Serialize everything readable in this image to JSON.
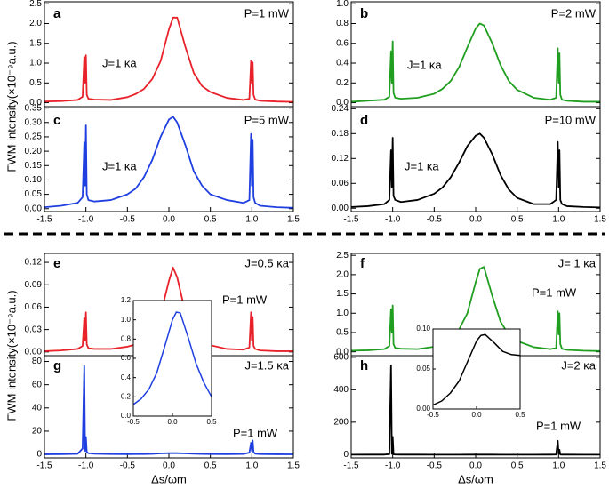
{
  "chart_data": [
    {
      "type": "line",
      "title": "a",
      "annotations": [
        "P=1 mW",
        "J=1 κa"
      ],
      "ylabel": "FWM intensity(×10⁻⁹a.u.)",
      "color": "#e8212a",
      "xlim": [
        -1.5,
        1.5
      ],
      "ylim": [
        -0.1,
        2.55
      ],
      "yticks": [
        {
          "value": 0,
          "label": "0.0"
        },
        0.5,
        {
          "value": 1,
          "label": "1.0"
        },
        1.5,
        {
          "value": 2,
          "label": "2.0"
        },
        2.5
      ],
      "x": [
        -1.5,
        -1.3,
        -1.1,
        -1.04,
        -1.02,
        -1.01,
        -1.0,
        -0.99,
        -0.97,
        -0.9,
        -0.7,
        -0.5,
        -0.4,
        -0.3,
        -0.2,
        -0.1,
        0,
        0.05,
        0.1,
        0.2,
        0.3,
        0.4,
        0.5,
        0.7,
        0.9,
        0.97,
        0.99,
        1.0,
        1.01,
        1.02,
        1.04,
        1.1,
        1.3,
        1.5
      ],
      "values": [
        0.03,
        0.04,
        0.07,
        0.15,
        1.15,
        0.5,
        1.2,
        0.2,
        0.1,
        0.08,
        0.07,
        0.14,
        0.22,
        0.35,
        0.6,
        1.05,
        1.85,
        2.15,
        2.15,
        1.4,
        0.75,
        0.42,
        0.27,
        0.12,
        0.07,
        0.1,
        1.05,
        0.5,
        1.02,
        0.2,
        0.08,
        0.05,
        0.03,
        0.02
      ]
    },
    {
      "type": "line",
      "title": "b",
      "annotations": [
        "P=2 mW",
        "J=1 κa"
      ],
      "color": "#1f9e1f",
      "xlim": [
        -1.5,
        1.5
      ],
      "ylim": [
        -0.04,
        1.02
      ],
      "yticks": [
        {
          "value": 0,
          "label": "0.0"
        },
        0.2,
        0.4,
        0.6,
        0.8,
        {
          "value": 1,
          "label": "1.0"
        }
      ],
      "x": [
        -1.5,
        -1.3,
        -1.1,
        -1.04,
        -1.02,
        -1.01,
        -1.0,
        -0.99,
        -0.97,
        -0.9,
        -0.7,
        -0.5,
        -0.4,
        -0.3,
        -0.2,
        -0.1,
        0,
        0.05,
        0.1,
        0.2,
        0.3,
        0.4,
        0.5,
        0.7,
        0.9,
        0.97,
        0.99,
        1.0,
        1.01,
        1.02,
        1.04,
        1.1,
        1.3,
        1.5
      ],
      "values": [
        0.01,
        0.02,
        0.03,
        0.06,
        0.52,
        0.2,
        0.62,
        0.1,
        0.05,
        0.04,
        0.05,
        0.09,
        0.14,
        0.22,
        0.36,
        0.56,
        0.75,
        0.8,
        0.78,
        0.6,
        0.38,
        0.22,
        0.13,
        0.05,
        0.03,
        0.05,
        0.55,
        0.2,
        0.5,
        0.08,
        0.03,
        0.02,
        0.01,
        0.01
      ]
    },
    {
      "type": "line",
      "title": "c",
      "annotations": [
        "P=5 mW",
        "J=1 κa"
      ],
      "color": "#1f3fe0",
      "xlim": [
        -1.5,
        1.5
      ],
      "ylim": [
        -0.01,
        0.355
      ],
      "yticks": [
        {
          "value": 0,
          "label": "0.00"
        },
        0.05,
        {
          "value": 0.1,
          "label": "0.10"
        },
        0.15,
        {
          "value": 0.2,
          "label": "0.20"
        },
        0.25,
        {
          "value": 0.3,
          "label": "0.30"
        },
        0.35
      ],
      "xticks": [
        -1.5,
        {
          "value": -1,
          "label": "-1.0"
        },
        -0.5,
        {
          "value": 0,
          "label": "0.0"
        },
        0.5,
        {
          "value": 1,
          "label": "1.0"
        },
        1.5
      ],
      "x": [
        -1.5,
        -1.3,
        -1.1,
        -1.04,
        -1.02,
        -1.01,
        -1.0,
        -0.99,
        -0.97,
        -0.9,
        -0.7,
        -0.5,
        -0.4,
        -0.3,
        -0.2,
        -0.1,
        0,
        0.05,
        0.1,
        0.2,
        0.3,
        0.4,
        0.5,
        0.7,
        0.9,
        0.97,
        0.99,
        1.0,
        1.01,
        1.02,
        1.04,
        1.1,
        1.3,
        1.5
      ],
      "values": [
        0.005,
        0.01,
        0.02,
        0.04,
        0.23,
        0.08,
        0.29,
        0.05,
        0.03,
        0.025,
        0.03,
        0.05,
        0.07,
        0.11,
        0.17,
        0.25,
        0.31,
        0.32,
        0.3,
        0.22,
        0.13,
        0.08,
        0.05,
        0.03,
        0.02,
        0.03,
        0.26,
        0.08,
        0.24,
        0.04,
        0.02,
        0.01,
        0.005,
        0.003
      ]
    },
    {
      "type": "line",
      "title": "d",
      "annotations": [
        "P=10 mW",
        "J=1 κa"
      ],
      "color": "#000000",
      "xlim": [
        -1.5,
        1.5
      ],
      "ylim": [
        -0.008,
        0.245
      ],
      "yticks": [
        {
          "value": 0,
          "label": "0.00"
        },
        0.06,
        0.12,
        0.18,
        0.24
      ],
      "xticks": [
        -1.5,
        {
          "value": -1,
          "label": "-1.0"
        },
        -0.5,
        {
          "value": 0,
          "label": "0.0"
        },
        0.5,
        {
          "value": 1,
          "label": "1.0"
        },
        1.5
      ],
      "x": [
        -1.5,
        -1.3,
        -1.1,
        -1.04,
        -1.02,
        -1.01,
        -1.0,
        -0.99,
        -0.97,
        -0.9,
        -0.7,
        -0.5,
        -0.4,
        -0.3,
        -0.2,
        -0.1,
        0,
        0.05,
        0.1,
        0.2,
        0.3,
        0.4,
        0.5,
        0.7,
        0.9,
        0.97,
        0.99,
        1.0,
        1.01,
        1.02,
        1.04,
        1.1,
        1.3,
        1.5
      ],
      "values": [
        0.003,
        0.005,
        0.01,
        0.02,
        0.14,
        0.05,
        0.17,
        0.03,
        0.02,
        0.015,
        0.02,
        0.035,
        0.05,
        0.075,
        0.11,
        0.15,
        0.175,
        0.18,
        0.17,
        0.13,
        0.08,
        0.045,
        0.025,
        0.01,
        0.01,
        0.02,
        0.16,
        0.05,
        0.14,
        0.02,
        0.01,
        0.005,
        0.003,
        0.002
      ]
    },
    {
      "type": "line",
      "title": "e",
      "annotations": [
        "J=0.5 κa",
        "P=1 mW"
      ],
      "ylabel": "FWM intensity(×10⁻⁹a.u.)",
      "color": "#e8212a",
      "xlim": [
        -1.5,
        1.5
      ],
      "ylim": [
        -0.005,
        0.132
      ],
      "yticks": [
        {
          "value": 0,
          "label": "0.00"
        },
        0.03,
        0.06,
        0.09,
        0.12
      ],
      "x": [
        -1.5,
        -1.3,
        -1.1,
        -1.04,
        -1.02,
        -1.01,
        -1.0,
        -0.99,
        -0.97,
        -0.9,
        -0.7,
        -0.5,
        -0.4,
        -0.3,
        -0.2,
        -0.1,
        0,
        0.05,
        0.1,
        0.2,
        0.3,
        0.4,
        0.5,
        0.7,
        0.9,
        0.97,
        0.99,
        1.0,
        1.01,
        1.02,
        1.04,
        1.1,
        1.3,
        1.5
      ],
      "values": [
        0.001,
        0.002,
        0.004,
        0.008,
        0.045,
        0.015,
        0.053,
        0.01,
        0.005,
        0.004,
        0.004,
        0.007,
        0.01,
        0.016,
        0.027,
        0.05,
        0.095,
        0.113,
        0.1,
        0.052,
        0.025,
        0.014,
        0.009,
        0.004,
        0.003,
        0.006,
        0.053,
        0.015,
        0.047,
        0.008,
        0.004,
        0.002,
        0.001,
        0.001
      ]
    },
    {
      "type": "line",
      "title": "f",
      "annotations": [
        "J= 1 κa",
        "P=1 mW"
      ],
      "color": "#1f9e1f",
      "xlim": [
        -1.5,
        1.5
      ],
      "ylim": [
        -0.1,
        2.55
      ],
      "yticks": [
        {
          "value": 0,
          "label": "0.0"
        },
        0.5,
        {
          "value": 1,
          "label": "1.0"
        },
        1.5,
        {
          "value": 2,
          "label": "2.0"
        },
        2.5
      ],
      "x": [
        -1.5,
        -1.3,
        -1.1,
        -1.04,
        -1.02,
        -1.01,
        -1.0,
        -0.99,
        -0.97,
        -0.9,
        -0.7,
        -0.5,
        -0.4,
        -0.3,
        -0.2,
        -0.1,
        0,
        0.05,
        0.1,
        0.2,
        0.3,
        0.4,
        0.5,
        0.7,
        0.9,
        0.97,
        0.99,
        1.0,
        1.01,
        1.02,
        1.04,
        1.1,
        1.3,
        1.5
      ],
      "values": [
        0.03,
        0.04,
        0.07,
        0.15,
        1.1,
        0.5,
        1.2,
        0.2,
        0.1,
        0.08,
        0.07,
        0.13,
        0.2,
        0.33,
        0.58,
        1.0,
        1.8,
        2.15,
        2.2,
        1.45,
        0.78,
        0.44,
        0.28,
        0.12,
        0.07,
        0.1,
        1.05,
        0.45,
        1.0,
        0.2,
        0.08,
        0.05,
        0.03,
        0.02
      ]
    },
    {
      "type": "line",
      "title": "g",
      "annotations": [
        "J=1.5 κa",
        "P=1 mW"
      ],
      "xlabel": "Δs/ωm",
      "color": "#1f3fe0",
      "xlim": [
        -1.5,
        1.5
      ],
      "ylim": [
        -3,
        85
      ],
      "yticks": [
        0,
        20,
        40,
        60,
        80
      ],
      "xticks": [
        -1.5,
        {
          "value": -1,
          "label": "-1.0"
        },
        -0.5,
        {
          "value": 0,
          "label": "0.0"
        },
        0.5,
        {
          "value": 1,
          "label": "1.0"
        },
        1.5
      ],
      "x": [
        -1.5,
        -1.3,
        -1.1,
        -1.04,
        -1.02,
        -1.01,
        -1.0,
        -0.99,
        -0.97,
        -0.9,
        -0.7,
        -0.5,
        -0.4,
        -0.3,
        -0.2,
        -0.1,
        0,
        0.05,
        0.1,
        0.2,
        0.3,
        0.4,
        0.5,
        0.7,
        0.9,
        0.97,
        0.99,
        1.0,
        1.01,
        1.02,
        1.04,
        1.1,
        1.3,
        1.5
      ],
      "values": [
        0.1,
        0.2,
        0.5,
        5,
        76,
        3,
        15,
        2,
        1,
        0.6,
        0.3,
        0.2,
        0.25,
        0.3,
        0.5,
        0.8,
        1.05,
        1.1,
        1.05,
        0.8,
        0.55,
        0.4,
        0.3,
        0.2,
        0.4,
        1.5,
        10,
        3,
        12,
        2,
        0.6,
        0.3,
        0.1,
        0.05
      ]
    },
    {
      "type": "line",
      "title": "h",
      "annotations": [
        "J=2 κa",
        "P=1 mW"
      ],
      "xlabel": "Δs/ωm",
      "color": "#000000",
      "xlim": [
        -1.5,
        1.5
      ],
      "ylim": [
        -20,
        610
      ],
      "yticks": [
        0,
        200,
        400,
        600
      ],
      "xticks": [
        -1.5,
        {
          "value": -1,
          "label": "-1.0"
        },
        -0.5,
        {
          "value": 0,
          "label": "0.0"
        },
        0.5,
        {
          "value": 1,
          "label": "1.0"
        },
        1.5
      ],
      "x": [
        -1.5,
        -1.3,
        -1.1,
        -1.04,
        -1.02,
        -1.01,
        -1.0,
        -0.99,
        -0.97,
        -0.9,
        -0.7,
        -0.5,
        -0.4,
        -0.3,
        -0.2,
        -0.1,
        0,
        0.05,
        0.1,
        0.2,
        0.3,
        0.4,
        0.5,
        0.7,
        0.9,
        0.97,
        0.99,
        1.0,
        1.01,
        1.02,
        1.04,
        1.1,
        1.3,
        1.5
      ],
      "values": [
        0.05,
        0.1,
        0.3,
        3,
        550,
        5,
        110,
        2,
        0.6,
        0.3,
        0.1,
        0.05,
        0.05,
        0.06,
        0.07,
        0.08,
        0.09,
        0.095,
        0.094,
        0.085,
        0.075,
        0.07,
        0.068,
        0.07,
        0.3,
        1,
        85,
        4,
        30,
        1,
        0.3,
        0.1,
        0.05,
        0.03
      ]
    },
    {
      "type": "line",
      "color": "#1f3fe0",
      "xlim": [
        -0.5,
        0.5
      ],
      "ylim": [
        0,
        1.2
      ],
      "yticks": [
        {
          "value": 0,
          "label": "0.0"
        },
        0.2,
        0.4,
        0.6,
        0.8,
        {
          "value": 1,
          "label": "1.0"
        },
        1.2
      ],
      "xticks": [
        -0.5,
        {
          "value": 0,
          "label": "0.0"
        },
        0.5
      ],
      "x": [
        -0.5,
        -0.4,
        -0.3,
        -0.2,
        -0.1,
        0,
        0.05,
        0.1,
        0.2,
        0.3,
        0.4,
        0.5
      ],
      "values": [
        0.12,
        0.18,
        0.28,
        0.45,
        0.72,
        1.0,
        1.08,
        1.07,
        0.82,
        0.55,
        0.35,
        0.2
      ]
    },
    {
      "type": "line",
      "color": "#000000",
      "xlim": [
        -0.5,
        0.5
      ],
      "ylim": [
        0,
        0.1
      ],
      "yticks": [
        {
          "value": 0,
          "label": "0.00"
        },
        0.05,
        {
          "value": 0.1,
          "label": "0.10"
        }
      ],
      "xticks": [
        -0.5,
        {
          "value": 0,
          "label": "0.0"
        },
        0.5
      ],
      "x": [
        -0.5,
        -0.4,
        -0.3,
        -0.2,
        -0.1,
        0,
        0.05,
        0.1,
        0.2,
        0.3,
        0.4,
        0.5
      ],
      "values": [
        0.005,
        0.01,
        0.02,
        0.035,
        0.06,
        0.085,
        0.092,
        0.093,
        0.083,
        0.072,
        0.068,
        0.067
      ]
    }
  ]
}
